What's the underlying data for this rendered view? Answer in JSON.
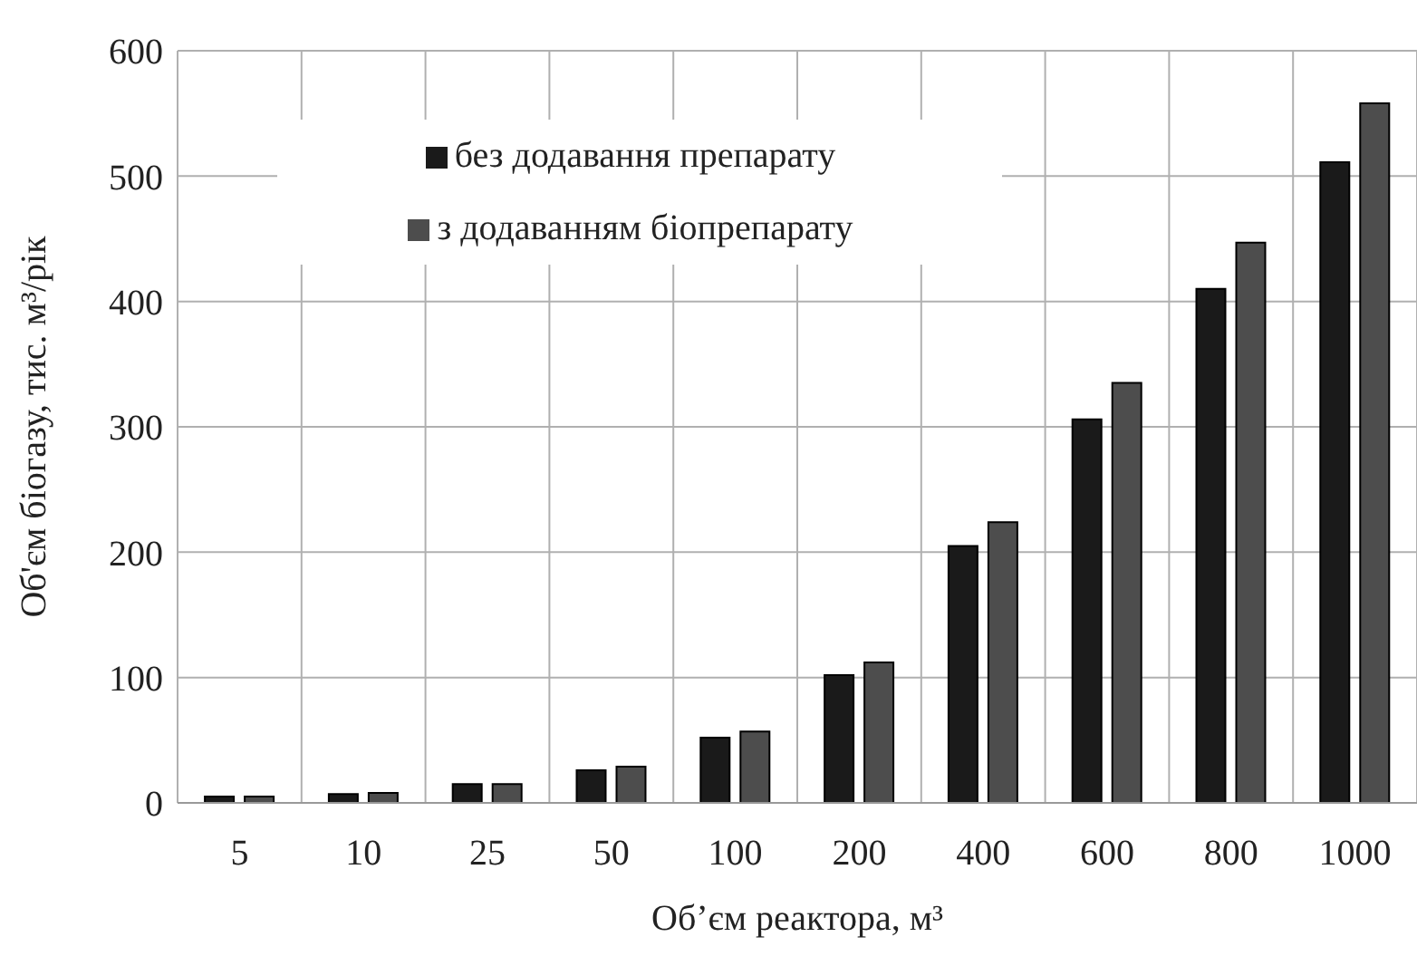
{
  "chart_data": {
    "type": "bar",
    "xlabel": "Об’єм реактора, м³",
    "ylabel": "Об'єм біогазу, тис. м³/рік",
    "categories": [
      "5",
      "10",
      "25",
      "50",
      "100",
      "200",
      "400",
      "600",
      "800",
      "1000"
    ],
    "series": [
      {
        "name": "без додавання препарату",
        "color": "#1a1a1a",
        "values": [
          5,
          7,
          15,
          26,
          52,
          102,
          205,
          306,
          410,
          511
        ]
      },
      {
        "name": "з додаванням біопрепарату",
        "color": "#4d4d4d",
        "values": [
          5,
          8,
          15,
          29,
          57,
          112,
          224,
          335,
          447,
          558
        ]
      }
    ],
    "ylim": [
      0,
      600
    ],
    "yticks": [
      0,
      100,
      200,
      300,
      400,
      500,
      600
    ],
    "grid": true,
    "legend": "top left"
  }
}
